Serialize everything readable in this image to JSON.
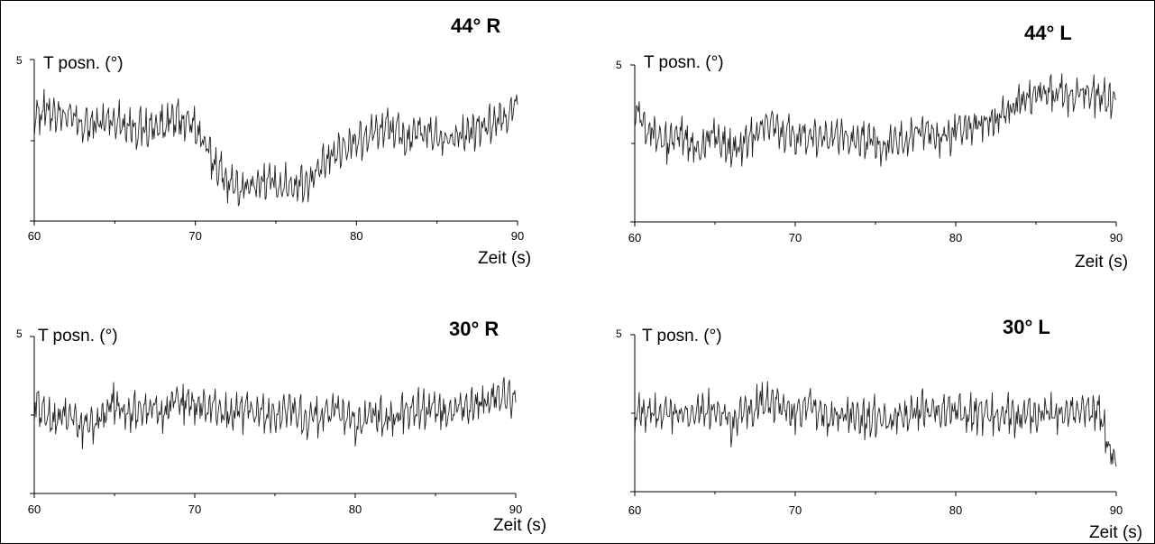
{
  "chart_data": [
    {
      "type": "line",
      "title": "44° R",
      "ylabel": "T posn. (°)",
      "xlabel": "Zeit (s)",
      "xlim": [
        60,
        90
      ],
      "ylim": [
        0,
        5
      ],
      "x_ticks": [
        "60",
        "70",
        "80",
        "90"
      ],
      "y_ticks": [
        "5"
      ],
      "series": [
        {
          "x": [
            60,
            61,
            62,
            63,
            64,
            65,
            66,
            67,
            68,
            69,
            70,
            71,
            72,
            73,
            74,
            75,
            76,
            77,
            78,
            79,
            80,
            81,
            82,
            83,
            84,
            85,
            86,
            87,
            88,
            89,
            90
          ],
          "values": [
            3.4,
            3.5,
            3.3,
            3.0,
            3.1,
            3.2,
            3.0,
            2.9,
            3.1,
            3.2,
            3.0,
            2.0,
            1.3,
            1.0,
            1.3,
            1.2,
            1.2,
            1.3,
            1.8,
            2.3,
            2.6,
            2.8,
            3.0,
            2.6,
            2.8,
            2.7,
            2.6,
            2.8,
            3.0,
            3.2,
            3.6
          ]
        }
      ]
    },
    {
      "type": "line",
      "title": "44° L",
      "ylabel": "T posn. (°)",
      "xlabel": "Zeit (s)",
      "xlim": [
        60,
        90
      ],
      "ylim": [
        0,
        5
      ],
      "x_ticks": [
        "60",
        "70",
        "80",
        "90"
      ],
      "y_ticks": [
        "5"
      ],
      "series": [
        {
          "x": [
            60,
            61,
            62,
            63,
            64,
            65,
            66,
            67,
            68,
            69,
            70,
            71,
            72,
            73,
            74,
            75,
            76,
            77,
            78,
            79,
            80,
            81,
            82,
            83,
            84,
            85,
            86,
            87,
            88,
            89,
            90
          ],
          "values": [
            3.8,
            3.0,
            2.6,
            2.8,
            2.4,
            2.9,
            2.3,
            2.6,
            3.2,
            3.0,
            2.8,
            2.9,
            2.7,
            2.8,
            2.7,
            2.6,
            2.5,
            2.8,
            3.0,
            2.8,
            2.9,
            3.1,
            3.3,
            3.6,
            3.9,
            4.1,
            4.2,
            4.0,
            4.3,
            4.0,
            3.9
          ]
        }
      ]
    },
    {
      "type": "line",
      "title": "30° R",
      "ylabel": "T posn. (°)",
      "xlabel": "Zeit (s)",
      "xlim": [
        60,
        90
      ],
      "ylim": [
        0,
        5
      ],
      "x_ticks": [
        "60",
        "70",
        "80",
        "90"
      ],
      "y_ticks": [
        "5"
      ],
      "series": [
        {
          "x": [
            60,
            61,
            62,
            63,
            64,
            65,
            66,
            67,
            68,
            69,
            70,
            71,
            72,
            73,
            74,
            75,
            76,
            77,
            78,
            79,
            80,
            81,
            82,
            83,
            84,
            85,
            86,
            87,
            88,
            89,
            90
          ],
          "values": [
            3.0,
            2.4,
            2.6,
            2.2,
            2.4,
            3.0,
            2.6,
            2.8,
            2.6,
            3.0,
            2.9,
            2.8,
            2.6,
            2.6,
            2.7,
            2.5,
            2.8,
            2.4,
            2.6,
            2.7,
            2.2,
            2.6,
            2.5,
            2.6,
            2.8,
            2.6,
            2.8,
            2.7,
            3.0,
            3.2,
            2.9
          ]
        }
      ]
    },
    {
      "type": "line",
      "title": "30° L",
      "ylabel": "T posn. (°)",
      "xlabel": "Zeit (s)",
      "xlim": [
        60,
        90
      ],
      "ylim": [
        0,
        5
      ],
      "x_ticks": [
        "60",
        "70",
        "80",
        "90"
      ],
      "y_ticks": [
        "5"
      ],
      "series": [
        {
          "x": [
            60,
            61,
            62,
            63,
            64,
            65,
            66,
            67,
            68,
            69,
            70,
            71,
            72,
            73,
            74,
            75,
            76,
            77,
            78,
            79,
            80,
            81,
            82,
            83,
            84,
            85,
            86,
            87,
            88,
            89,
            90
          ],
          "values": [
            2.6,
            2.5,
            2.7,
            2.4,
            2.6,
            2.8,
            2.2,
            2.6,
            2.9,
            2.8,
            2.6,
            2.7,
            2.5,
            2.5,
            2.4,
            2.5,
            2.4,
            2.6,
            2.7,
            2.6,
            2.7,
            2.6,
            2.5,
            2.6,
            2.4,
            2.5,
            2.6,
            2.6,
            2.7,
            2.6,
            0.8
          ]
        }
      ]
    }
  ]
}
